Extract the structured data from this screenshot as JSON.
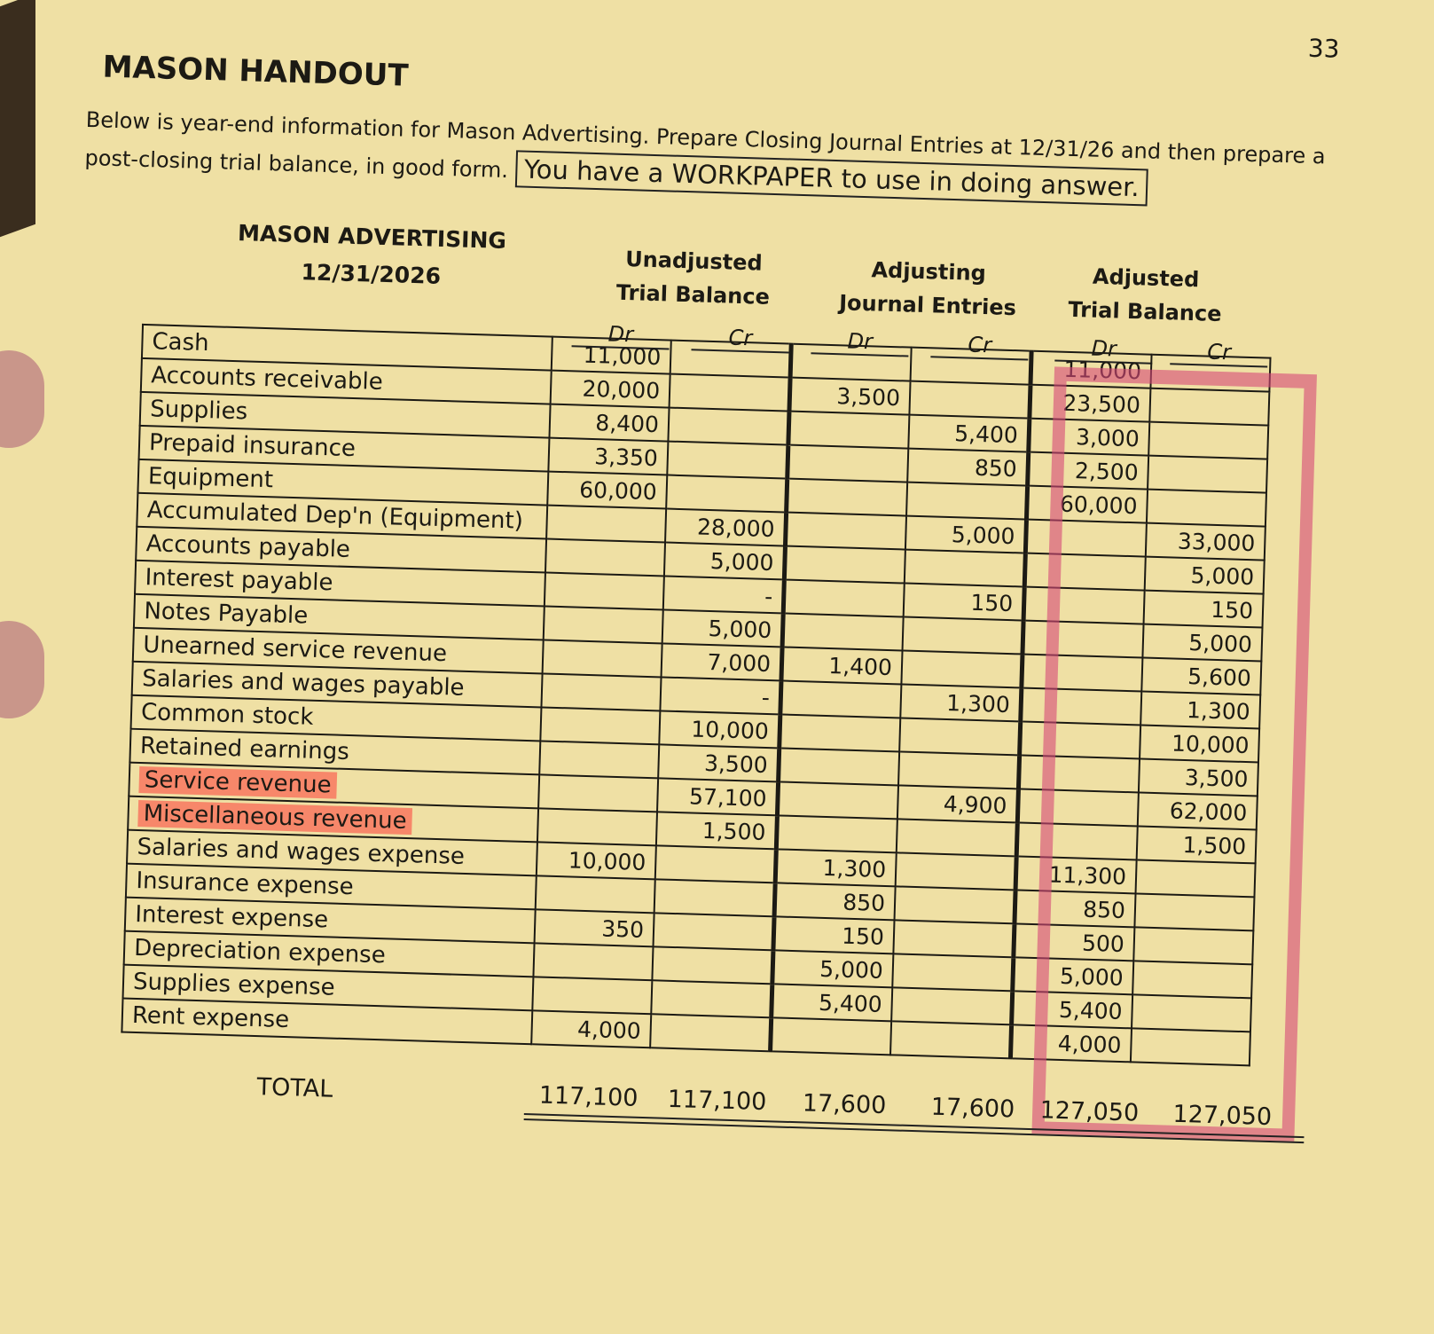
{
  "page_number": "33",
  "title": "MASON HANDOUT",
  "intro": "Below is year-end information for Mason Advertising.  Prepare Closing Journal Entries at 12/31/26 and then prepare a post-closing trial balance, in good form.",
  "note": "You have a WORKPAPER to use in doing answer.",
  "company": {
    "name": "MASON ADVERTISING",
    "date": "12/31/2026"
  },
  "column_groups": [
    {
      "line1": "Unadjusted",
      "line2": "Trial Balance"
    },
    {
      "line1": "Adjusting",
      "line2": "Journal Entries"
    },
    {
      "line1": "Adjusted",
      "line2": "Trial Balance"
    }
  ],
  "dr_label": "Dr",
  "cr_label": "Cr",
  "highlight_color": "#f7876a",
  "box_color": "#d64878",
  "rows": [
    {
      "label": "Cash",
      "values": [
        "11,000",
        "",
        "",
        "",
        "11,000",
        ""
      ]
    },
    {
      "label": "Accounts receivable",
      "values": [
        "20,000",
        "",
        "3,500",
        "",
        "23,500",
        ""
      ]
    },
    {
      "label": "Supplies",
      "values": [
        "8,400",
        "",
        "",
        "5,400",
        "3,000",
        ""
      ]
    },
    {
      "label": "Prepaid insurance",
      "values": [
        "3,350",
        "",
        "",
        "850",
        "2,500",
        ""
      ]
    },
    {
      "label": "Equipment",
      "values": [
        "60,000",
        "",
        "",
        "",
        "60,000",
        ""
      ]
    },
    {
      "label": "Accumulated Dep'n (Equipment)",
      "values": [
        "",
        "28,000",
        "",
        "5,000",
        "",
        "33,000"
      ]
    },
    {
      "label": "Accounts payable",
      "values": [
        "",
        "5,000",
        "",
        "",
        "",
        "5,000"
      ]
    },
    {
      "label": "Interest payable",
      "values": [
        "",
        "-",
        "",
        "150",
        "",
        "150"
      ]
    },
    {
      "label": "Notes Payable",
      "values": [
        "",
        "5,000",
        "",
        "",
        "",
        "5,000"
      ]
    },
    {
      "label": "Unearned service revenue",
      "values": [
        "",
        "7,000",
        "1,400",
        "",
        "",
        "5,600"
      ]
    },
    {
      "label": "Salaries and wages payable",
      "values": [
        "",
        "-",
        "",
        "1,300",
        "",
        "1,300"
      ]
    },
    {
      "label": "Common stock",
      "values": [
        "",
        "10,000",
        "",
        "",
        "",
        "10,000"
      ]
    },
    {
      "label": "Retained earnings",
      "values": [
        "",
        "3,500",
        "",
        "",
        "",
        "3,500"
      ]
    },
    {
      "label": "Service revenue",
      "highlighted": true,
      "values": [
        "",
        "57,100",
        "",
        "4,900",
        "",
        "62,000"
      ]
    },
    {
      "label": "Miscellaneous revenue",
      "highlighted": true,
      "values": [
        "",
        "1,500",
        "",
        "",
        "",
        "1,500"
      ]
    },
    {
      "label": "Salaries and wages expense",
      "values": [
        "10,000",
        "",
        "1,300",
        "",
        "11,300",
        ""
      ]
    },
    {
      "label": "Insurance expense",
      "values": [
        "",
        "",
        "850",
        "",
        "850",
        ""
      ]
    },
    {
      "label": "Interest expense",
      "values": [
        "350",
        "",
        "150",
        "",
        "500",
        ""
      ]
    },
    {
      "label": "Depreciation expense",
      "values": [
        "",
        "",
        "5,000",
        "",
        "5,000",
        ""
      ]
    },
    {
      "label": "Supplies expense",
      "values": [
        "",
        "",
        "5,400",
        "",
        "5,400",
        ""
      ]
    },
    {
      "label": "Rent expense",
      "values": [
        "4,000",
        "",
        "",
        "",
        "4,000",
        ""
      ]
    }
  ],
  "total": {
    "label": "TOTAL",
    "values": [
      "117,100",
      "117,100",
      "17,600",
      "17,600",
      "127,050",
      "127,050"
    ]
  }
}
